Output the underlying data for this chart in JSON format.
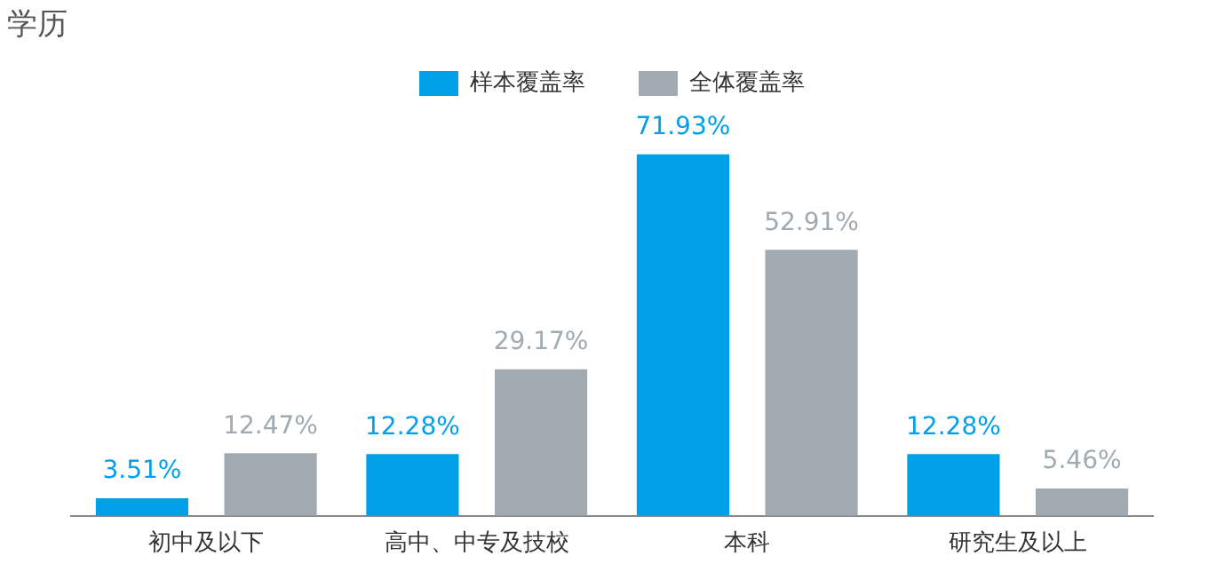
{
  "chart_data": {
    "type": "bar",
    "title": "学历",
    "categories": [
      "初中及以下",
      "高中、中专及技校",
      "本科",
      "研究生及以上"
    ],
    "series": [
      {
        "name": "样本覆盖率",
        "color": "#00a0e9",
        "values": [
          3.51,
          12.28,
          71.93,
          12.28
        ],
        "value_labels": [
          "3.51%",
          "12.28%",
          "71.93%",
          "12.28%"
        ]
      },
      {
        "name": "全体覆盖率",
        "color": "#a0aab0",
        "values": [
          12.47,
          29.17,
          52.91,
          5.46
        ],
        "value_labels": [
          "12.47%",
          "29.17%",
          "52.91%",
          "5.46%"
        ]
      }
    ],
    "legend": "top",
    "grid": false,
    "tick_labels": "x"
  }
}
